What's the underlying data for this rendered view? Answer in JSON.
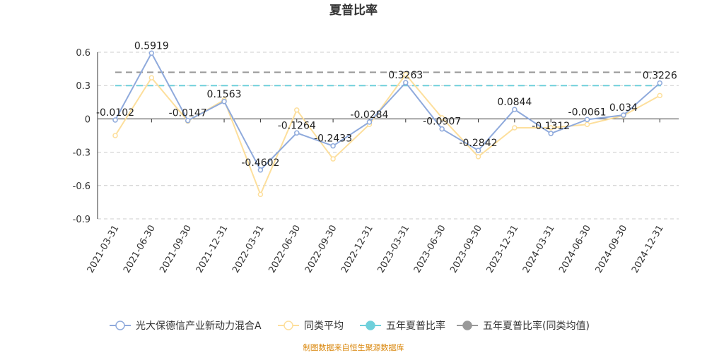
{
  "chart_data": {
    "type": "line",
    "title": "夏普比率",
    "categories": [
      "2021-03-31",
      "2021-06-30",
      "2021-09-30",
      "2021-12-31",
      "2022-03-31",
      "2022-06-30",
      "2022-09-30",
      "2022-12-31",
      "2023-03-31",
      "2023-06-30",
      "2023-09-30",
      "2023-12-31",
      "2024-03-31",
      "2024-06-30",
      "2024-09-30",
      "2024-12-31"
    ],
    "ylim": [
      -0.9,
      0.6
    ],
    "yticks": [
      0.6,
      0.3,
      0,
      -0.3,
      -0.6,
      -0.9
    ],
    "ytick_labels": [
      "0.6",
      "0.3",
      "0",
      "-0.3",
      "-0.6",
      "-0.9"
    ],
    "grid": true,
    "legend_position": "bottom",
    "series": [
      {
        "name": "光大保德信产业新动力混合A",
        "color": "#8faadc",
        "values": [
          -0.0102,
          0.5919,
          -0.0147,
          0.1563,
          -0.4602,
          -0.1264,
          -0.2433,
          -0.0284,
          0.3263,
          -0.0907,
          -0.2842,
          0.0844,
          -0.1312,
          -0.0061,
          0.034,
          0.3226
        ],
        "labels": [
          "-0.0102",
          "0.5919",
          "-0.0147",
          "0.1563",
          "-0.4602",
          "-0.1264",
          "-0.2433",
          "-0.0284",
          "0.3263",
          "-0.0907",
          "-0.2842",
          "0.0844",
          "-0.1312",
          "-0.0061",
          "0.034",
          "0.3226"
        ]
      },
      {
        "name": "同类平均",
        "color": "#fddf9c",
        "values": [
          -0.15,
          0.37,
          -0.02,
          0.17,
          -0.68,
          0.08,
          -0.36,
          -0.05,
          0.4,
          0.01,
          -0.34,
          -0.08,
          -0.08,
          -0.05,
          0.03,
          0.21
        ]
      }
    ],
    "reference_lines": [
      {
        "name": "五年夏普比率",
        "color": "#6fd0db",
        "value": 0.3
      },
      {
        "name": "五年夏普比率(同类均值)",
        "color": "#999999",
        "value": 0.42
      }
    ],
    "source_note": "制图数据来自恒生聚源数据库"
  }
}
